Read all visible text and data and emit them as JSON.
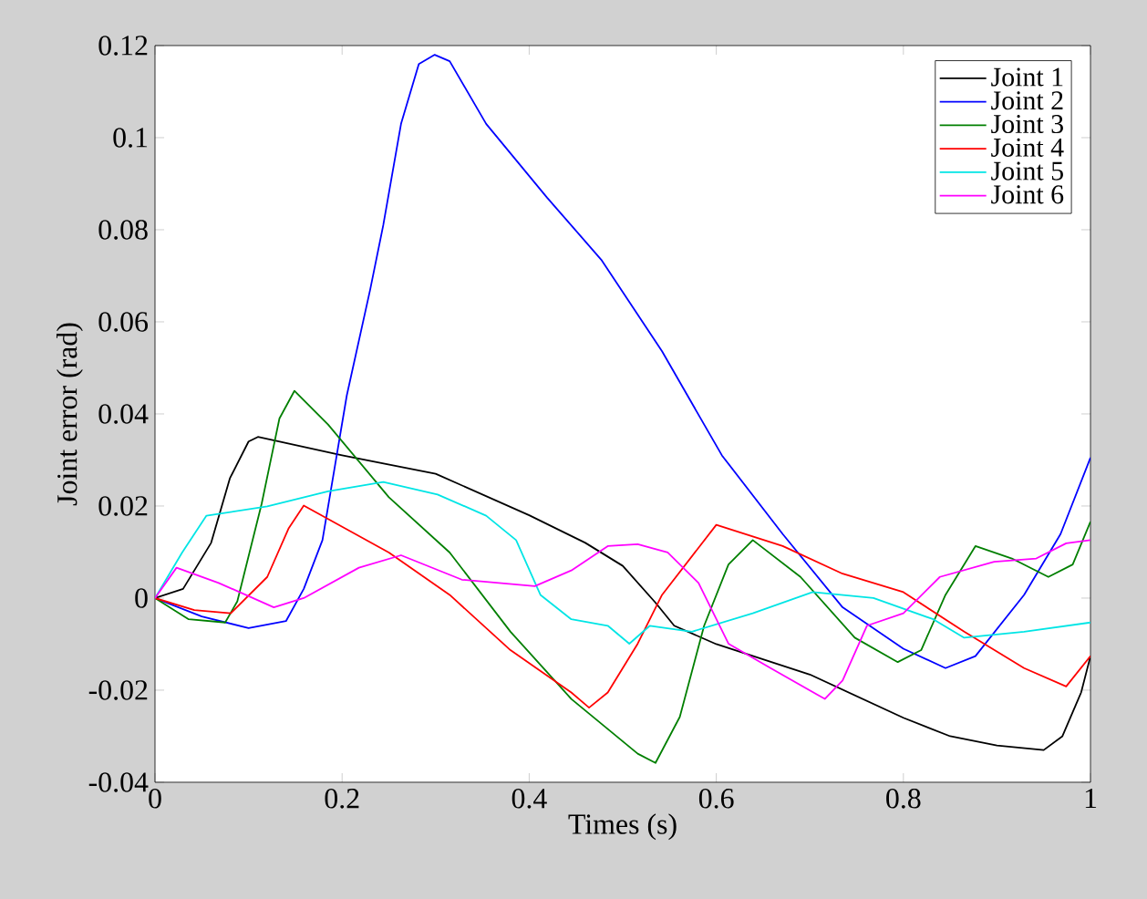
{
  "chart_data": {
    "type": "line",
    "xlabel": "Times (s)",
    "ylabel": "Joint error (rad)",
    "xlim": [
      0,
      1
    ],
    "ylim": [
      -0.04,
      0.12
    ],
    "xticks": [
      0,
      0.2,
      0.4,
      0.6,
      0.8,
      1
    ],
    "yticks": [
      -0.04,
      -0.02,
      0,
      0.02,
      0.04,
      0.06,
      0.08,
      0.1,
      0.12
    ],
    "grid": false,
    "legend": "top right",
    "marker": "none",
    "line_style": "solid",
    "series": [
      {
        "name": "Joint 1",
        "color": "#000000",
        "x": [
          0,
          0.03,
          0.06,
          0.08,
          0.1,
          0.11,
          0.2,
          0.3,
          0.4,
          0.46,
          0.5,
          0.535,
          0.555,
          0.6,
          0.7,
          0.8,
          0.85,
          0.9,
          0.95,
          0.97,
          0.99,
          1.0
        ],
        "values": [
          0,
          0.002,
          0.012,
          0.026,
          0.034,
          0.035,
          0.031,
          0.027,
          0.018,
          0.012,
          0.007,
          -0.001,
          -0.006,
          -0.01,
          -0.0166,
          -0.026,
          -0.03,
          -0.032,
          -0.033,
          -0.03,
          -0.0205,
          -0.0126
        ]
      },
      {
        "name": "Joint 2",
        "color": "#0000ff",
        "x": [
          0,
          0.05,
          0.1,
          0.14,
          0.159,
          0.179,
          0.205,
          0.23,
          0.244,
          0.263,
          0.282,
          0.299,
          0.315,
          0.354,
          0.419,
          0.477,
          0.542,
          0.606,
          0.671,
          0.735,
          0.8,
          0.845,
          0.877,
          0.929,
          0.968,
          1.0
        ],
        "values": [
          0,
          -0.004,
          -0.0065,
          -0.005,
          0.002,
          0.0126,
          0.044,
          0.067,
          0.081,
          0.103,
          0.116,
          0.118,
          0.1166,
          0.103,
          0.087,
          0.0735,
          0.0536,
          0.031,
          0.0139,
          -0.002,
          -0.011,
          -0.0152,
          -0.0126,
          0.0007,
          0.0139,
          0.0305
        ]
      },
      {
        "name": "Joint 3",
        "color": "#007f00",
        "x": [
          0,
          0.036,
          0.075,
          0.088,
          0.114,
          0.133,
          0.149,
          0.185,
          0.25,
          0.315,
          0.38,
          0.445,
          0.516,
          0.535,
          0.561,
          0.587,
          0.613,
          0.639,
          0.69,
          0.748,
          0.794,
          0.819,
          0.845,
          0.877,
          0.916,
          0.955,
          0.981,
          1.0
        ],
        "values": [
          0,
          -0.0046,
          -0.0053,
          -0.0007,
          0.0205,
          0.039,
          0.045,
          0.0377,
          0.0219,
          0.0099,
          -0.0073,
          -0.0219,
          -0.0338,
          -0.0358,
          -0.0258,
          -0.006,
          0.0073,
          0.0126,
          0.0046,
          -0.0086,
          -0.0139,
          -0.0113,
          0.0007,
          0.0113,
          0.0086,
          0.0046,
          0.0073,
          0.0166
        ]
      },
      {
        "name": "Joint 4",
        "color": "#ff0000",
        "x": [
          0,
          0.042,
          0.081,
          0.12,
          0.143,
          0.159,
          0.25,
          0.315,
          0.38,
          0.445,
          0.464,
          0.484,
          0.516,
          0.542,
          0.6,
          0.671,
          0.735,
          0.8,
          0.865,
          0.929,
          0.974,
          1.0
        ],
        "values": [
          0,
          -0.0026,
          -0.0033,
          0.0046,
          0.0152,
          0.0201,
          0.0099,
          0.0007,
          -0.0113,
          -0.0205,
          -0.0238,
          -0.0205,
          -0.0099,
          0.0007,
          0.0159,
          0.0113,
          0.0053,
          0.0013,
          -0.0073,
          -0.0152,
          -0.0192,
          -0.0126
        ]
      },
      {
        "name": "Joint 5",
        "color": "#00e5e5",
        "x": [
          0,
          0.029,
          0.055,
          0.12,
          0.185,
          0.244,
          0.302,
          0.354,
          0.386,
          0.412,
          0.445,
          0.484,
          0.507,
          0.529,
          0.574,
          0.639,
          0.703,
          0.768,
          0.832,
          0.865,
          0.929,
          1.0
        ],
        "values": [
          0,
          0.0099,
          0.0179,
          0.0199,
          0.0232,
          0.0252,
          0.0225,
          0.0179,
          0.0126,
          0.0007,
          -0.0046,
          -0.006,
          -0.0099,
          -0.006,
          -0.0073,
          -0.0033,
          0.0013,
          0.0,
          -0.0046,
          -0.0086,
          -0.0073,
          -0.0053
        ]
      },
      {
        "name": "Joint 6",
        "color": "#ff00ff",
        "x": [
          0,
          0.023,
          0.068,
          0.127,
          0.159,
          0.218,
          0.263,
          0.328,
          0.406,
          0.445,
          0.484,
          0.516,
          0.548,
          0.581,
          0.613,
          0.658,
          0.716,
          0.735,
          0.761,
          0.8,
          0.839,
          0.897,
          0.942,
          0.974,
          1.0
        ],
        "values": [
          0,
          0.0066,
          0.0033,
          -0.002,
          0.0,
          0.0066,
          0.0093,
          0.004,
          0.0026,
          0.006,
          0.0113,
          0.0117,
          0.0099,
          0.0033,
          -0.0099,
          -0.0152,
          -0.0219,
          -0.0179,
          -0.006,
          -0.0033,
          0.0046,
          0.0079,
          0.0086,
          0.0119,
          0.0126
        ]
      }
    ]
  }
}
